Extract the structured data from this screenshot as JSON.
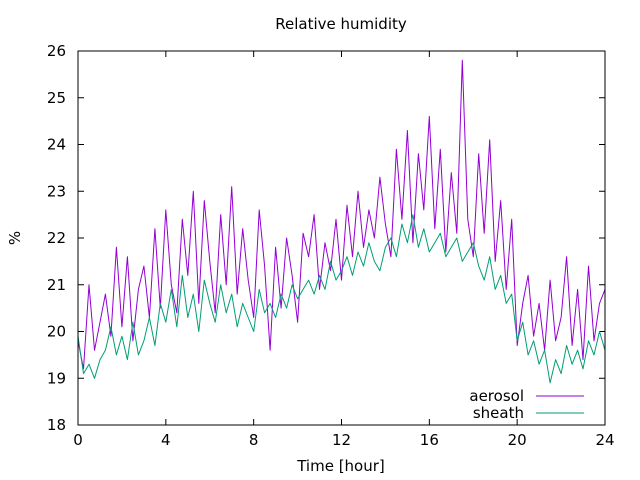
{
  "chart_data": {
    "type": "line",
    "title": "Relative humidity",
    "xlabel": "Time [hour]",
    "ylabel": "%",
    "xlim": [
      0,
      24
    ],
    "ylim": [
      18,
      26
    ],
    "xticks": [
      0,
      4,
      8,
      12,
      16,
      20,
      24
    ],
    "yticks": [
      18,
      19,
      20,
      21,
      22,
      23,
      24,
      25,
      26
    ],
    "grid": false,
    "legend": "bottom-right",
    "series": [
      {
        "name": "aerosol",
        "color": "#9400d3",
        "x": [
          0,
          0.25,
          0.5,
          0.75,
          1,
          1.25,
          1.5,
          1.75,
          2,
          2.25,
          2.5,
          2.75,
          3,
          3.25,
          3.5,
          3.75,
          4,
          4.25,
          4.5,
          4.75,
          5,
          5.25,
          5.5,
          5.75,
          6,
          6.25,
          6.5,
          6.75,
          7,
          7.25,
          7.5,
          7.75,
          8,
          8.25,
          8.5,
          8.75,
          9,
          9.25,
          9.5,
          9.75,
          10,
          10.25,
          10.5,
          10.75,
          11,
          11.25,
          11.5,
          11.75,
          12,
          12.25,
          12.5,
          12.75,
          13,
          13.25,
          13.5,
          13.75,
          14,
          14.25,
          14.5,
          14.75,
          15,
          15.25,
          15.5,
          15.75,
          16,
          16.25,
          16.5,
          16.75,
          17,
          17.25,
          17.5,
          17.75,
          18,
          18.25,
          18.5,
          18.75,
          19,
          19.25,
          19.5,
          19.75,
          20,
          20.25,
          20.5,
          20.75,
          21,
          21.25,
          21.5,
          21.75,
          22,
          22.25,
          22.5,
          22.75,
          23,
          23.25,
          23.5,
          23.75,
          24
        ],
        "y": [
          19.8,
          19.2,
          21.0,
          19.6,
          20.2,
          20.8,
          19.9,
          21.8,
          20.1,
          21.6,
          19.8,
          20.9,
          21.4,
          20.3,
          22.2,
          20.5,
          22.6,
          21.0,
          20.4,
          22.4,
          21.2,
          23.0,
          20.6,
          22.8,
          21.5,
          20.4,
          22.5,
          21.0,
          23.1,
          20.8,
          22.2,
          21.1,
          20.3,
          22.6,
          21.4,
          19.6,
          21.8,
          20.5,
          22.0,
          21.2,
          20.2,
          22.1,
          21.6,
          22.5,
          20.9,
          21.9,
          21.3,
          22.4,
          21.1,
          22.7,
          21.6,
          23.0,
          21.8,
          22.6,
          22.0,
          23.3,
          22.3,
          21.6,
          23.9,
          22.4,
          24.3,
          21.9,
          23.8,
          22.6,
          24.6,
          22.2,
          23.9,
          21.7,
          23.4,
          22.1,
          25.8,
          22.4,
          21.6,
          23.8,
          22.1,
          24.1,
          21.5,
          22.8,
          20.9,
          22.4,
          19.7,
          20.6,
          21.2,
          19.9,
          20.6,
          19.6,
          21.1,
          19.8,
          20.3,
          21.6,
          19.7,
          20.9,
          19.4,
          21.4,
          19.8,
          20.6,
          20.9
        ]
      },
      {
        "name": "sheath",
        "color": "#009e73",
        "x": [
          0,
          0.25,
          0.5,
          0.75,
          1,
          1.25,
          1.5,
          1.75,
          2,
          2.25,
          2.5,
          2.75,
          3,
          3.25,
          3.5,
          3.75,
          4,
          4.25,
          4.5,
          4.75,
          5,
          5.25,
          5.5,
          5.75,
          6,
          6.25,
          6.5,
          6.75,
          7,
          7.25,
          7.5,
          7.75,
          8,
          8.25,
          8.5,
          8.75,
          9,
          9.25,
          9.5,
          9.75,
          10,
          10.25,
          10.5,
          10.75,
          11,
          11.25,
          11.5,
          11.75,
          12,
          12.25,
          12.5,
          12.75,
          13,
          13.25,
          13.5,
          13.75,
          14,
          14.25,
          14.5,
          14.75,
          15,
          15.25,
          15.5,
          15.75,
          16,
          16.25,
          16.5,
          16.75,
          17,
          17.25,
          17.5,
          17.75,
          18,
          18.25,
          18.5,
          18.75,
          19,
          19.25,
          19.5,
          19.75,
          20,
          20.25,
          20.5,
          20.75,
          21,
          21.25,
          21.5,
          21.75,
          22,
          22.25,
          22.5,
          22.75,
          23,
          23.25,
          23.5,
          23.75,
          24
        ],
        "y": [
          19.9,
          19.1,
          19.3,
          19.0,
          19.4,
          19.6,
          20.1,
          19.5,
          19.9,
          19.4,
          20.2,
          19.5,
          19.8,
          20.3,
          19.7,
          20.6,
          20.2,
          20.9,
          20.1,
          21.2,
          20.3,
          20.8,
          20.0,
          21.1,
          20.6,
          20.2,
          21.0,
          20.4,
          20.8,
          20.1,
          20.6,
          20.3,
          20.0,
          20.9,
          20.4,
          20.6,
          20.3,
          20.8,
          20.5,
          21.0,
          20.7,
          20.9,
          21.1,
          20.8,
          21.2,
          20.9,
          21.5,
          21.1,
          21.3,
          21.6,
          21.2,
          21.7,
          21.4,
          21.9,
          21.5,
          21.3,
          21.8,
          22.0,
          21.6,
          22.3,
          21.9,
          22.5,
          21.8,
          22.2,
          21.7,
          21.9,
          22.1,
          21.6,
          21.8,
          22.0,
          21.5,
          21.7,
          21.9,
          21.4,
          21.1,
          21.6,
          20.9,
          21.2,
          20.6,
          20.8,
          19.8,
          20.2,
          19.5,
          19.8,
          19.3,
          19.6,
          18.9,
          19.4,
          19.1,
          19.7,
          19.3,
          19.6,
          19.2,
          19.8,
          19.5,
          20.0,
          19.6
        ]
      }
    ]
  }
}
